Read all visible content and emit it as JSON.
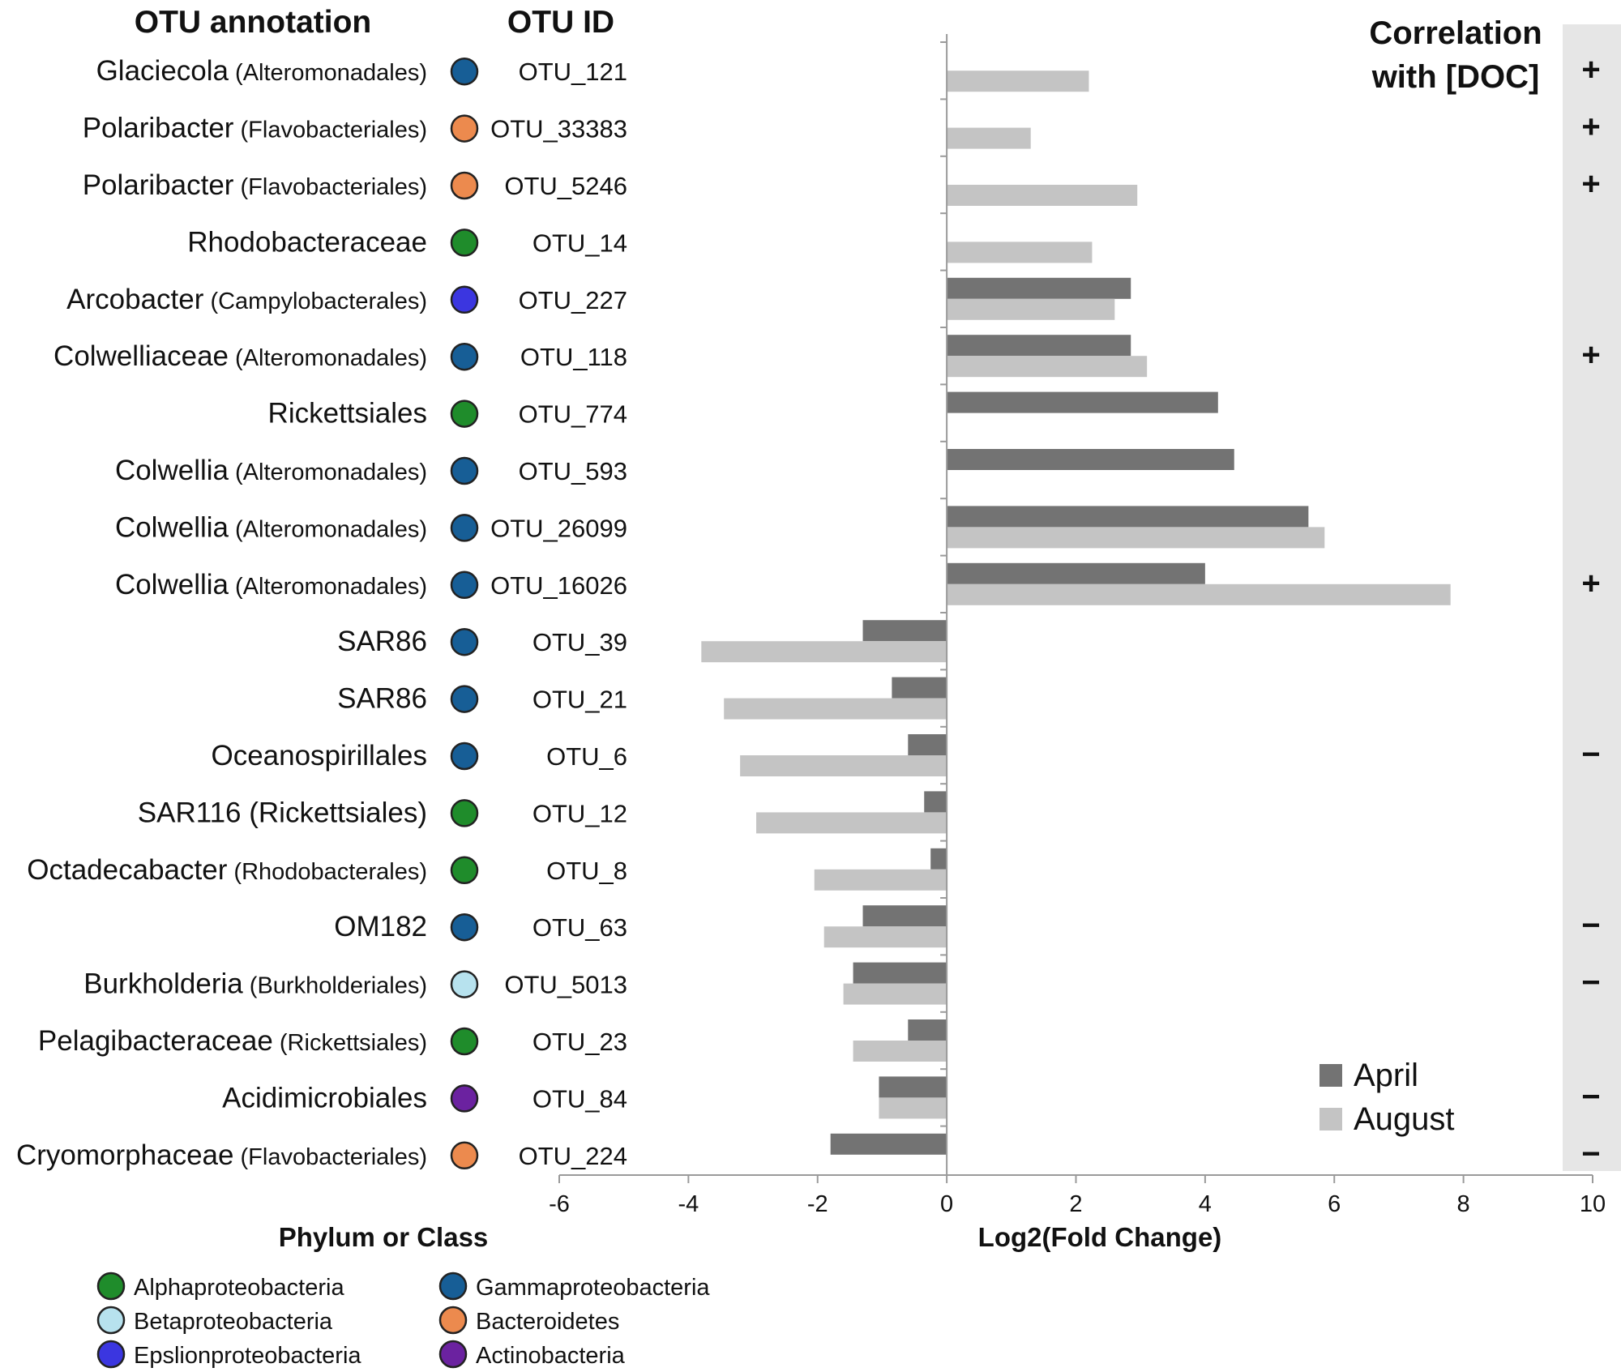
{
  "chart_data": {
    "type": "bar",
    "orientation": "horizontal",
    "xlabel": "Log2(Fold Change)",
    "xlim": [
      -6,
      10
    ],
    "xticks": [
      -6,
      -4,
      -2,
      0,
      2,
      4,
      6,
      8,
      10
    ],
    "headers": {
      "annotation": "OTU annotation",
      "otu_id": "OTU ID",
      "correlation_line1": "Correlation",
      "correlation_line2": "with [DOC]"
    },
    "rows": [
      {
        "name": "Glaciecola",
        "order": "(Alteromonadales)",
        "otu": "OTU_121",
        "phylum": "Gammaproteobacteria",
        "april": null,
        "august": 2.2,
        "corr": "+"
      },
      {
        "name": "Polaribacter",
        "order": "(Flavobacteriales)",
        "otu": "OTU_33383",
        "phylum": "Bacteroidetes",
        "april": null,
        "august": 1.3,
        "corr": "+"
      },
      {
        "name": "Polaribacter",
        "order": "(Flavobacteriales)",
        "otu": "OTU_5246",
        "phylum": "Bacteroidetes",
        "april": null,
        "august": 2.95,
        "corr": "+"
      },
      {
        "name": "Rhodobacteraceae",
        "order": "",
        "otu": "OTU_14",
        "phylum": "Alphaproteobacteria",
        "april": null,
        "august": 2.25,
        "corr": ""
      },
      {
        "name": "Arcobacter",
        "order": "(Campylobacterales)",
        "otu": "OTU_227",
        "phylum": "Epslionproteobacteria",
        "april": 2.85,
        "august": 2.6,
        "corr": ""
      },
      {
        "name": "Colwelliaceae",
        "order": "(Alteromonadales)",
        "otu": "OTU_118",
        "phylum": "Gammaproteobacteria",
        "april": 2.85,
        "august": 3.1,
        "corr": "+"
      },
      {
        "name": "Rickettsiales",
        "order": "",
        "otu": "OTU_774",
        "phylum": "Alphaproteobacteria",
        "april": 4.2,
        "august": null,
        "corr": ""
      },
      {
        "name": "Colwellia",
        "order": "(Alteromonadales)",
        "otu": "OTU_593",
        "phylum": "Gammaproteobacteria",
        "april": 4.45,
        "august": null,
        "corr": ""
      },
      {
        "name": "Colwellia",
        "order": "(Alteromonadales)",
        "otu": "OTU_26099",
        "phylum": "Gammaproteobacteria",
        "april": 5.6,
        "august": 5.85,
        "corr": ""
      },
      {
        "name": "Colwellia",
        "order": "(Alteromonadales)",
        "otu": "OTU_16026",
        "phylum": "Gammaproteobacteria",
        "april": 4.0,
        "august": 7.8,
        "corr": "+"
      },
      {
        "name": "SAR86",
        "order": "",
        "otu": "OTU_39",
        "phylum": "Gammaproteobacteria",
        "april": -1.3,
        "august": -3.8,
        "corr": ""
      },
      {
        "name": "SAR86",
        "order": "",
        "otu": "OTU_21",
        "phylum": "Gammaproteobacteria",
        "april": -0.85,
        "august": -3.45,
        "corr": ""
      },
      {
        "name": "Oceanospirillales",
        "order": "",
        "otu": "OTU_6",
        "phylum": "Gammaproteobacteria",
        "april": -0.6,
        "august": -3.2,
        "corr": "−"
      },
      {
        "name": "SAR116 (Rickettsiales)",
        "order": "",
        "otu": "OTU_12",
        "phylum": "Alphaproteobacteria",
        "april": -0.35,
        "august": -2.95,
        "corr": ""
      },
      {
        "name": "Octadecabacter",
        "order": "(Rhodobacterales)",
        "otu": "OTU_8",
        "phylum": "Alphaproteobacteria",
        "april": -0.25,
        "august": -2.05,
        "corr": ""
      },
      {
        "name": "OM182",
        "order": "",
        "otu": "OTU_63",
        "phylum": "Gammaproteobacteria",
        "april": -1.3,
        "august": -1.9,
        "corr": "−"
      },
      {
        "name": "Burkholderia",
        "order": "(Burkholderiales)",
        "otu": "OTU_5013",
        "phylum": "Betaproteobacteria",
        "april": -1.45,
        "august": -1.6,
        "corr": "−"
      },
      {
        "name": "Pelagibacteraceae",
        "order": "(Rickettsiales)",
        "otu": "OTU_23",
        "phylum": "Alphaproteobacteria",
        "april": -0.6,
        "august": -1.45,
        "corr": ""
      },
      {
        "name": "Acidimicrobiales",
        "order": "",
        "otu": "OTU_84",
        "phylum": "Actinobacteria",
        "april": -1.05,
        "august": -1.05,
        "corr": "−"
      },
      {
        "name": "Cryomorphaceae",
        "order": "(Flavobacteriales)",
        "otu": "OTU_224",
        "phylum": "Bacteroidetes",
        "april": -1.8,
        "august": null,
        "corr": "−"
      }
    ],
    "series": [
      {
        "name": "April",
        "color": "#737373"
      },
      {
        "name": "August",
        "color": "#c4c4c4"
      }
    ],
    "phylum_legend": {
      "title": "Phylum or Class",
      "items": [
        {
          "name": "Alphaproteobacteria",
          "color": "#1f8c2b"
        },
        {
          "name": "Gammaproteobacteria",
          "color": "#175e96"
        },
        {
          "name": "Betaproteobacteria",
          "color": "#b7e2ee"
        },
        {
          "name": "Bacteroidetes",
          "color": "#ec8a4e"
        },
        {
          "name": "Epslionproteobacteria",
          "color": "#3b36e0"
        },
        {
          "name": "Actinobacteria",
          "color": "#6b22a0"
        }
      ]
    }
  }
}
